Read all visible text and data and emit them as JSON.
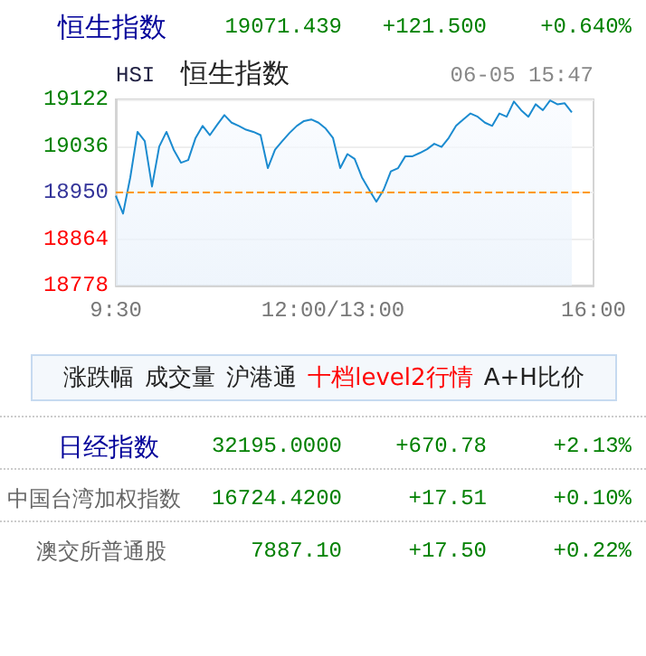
{
  "chart_data": {
    "type": "area",
    "title": "恒生指数",
    "categories": [
      "9:30",
      null,
      null,
      null,
      null,
      null,
      null,
      null,
      null,
      null,
      null,
      null,
      null,
      null,
      null,
      null,
      null,
      null,
      null,
      null,
      null,
      null,
      null,
      null,
      null,
      null,
      null,
      null,
      null,
      null,
      "12:00/13:00",
      null,
      null,
      null,
      null,
      null,
      null,
      null,
      null,
      null,
      null,
      null,
      null,
      null,
      null,
      null,
      null,
      null,
      null,
      null,
      null,
      null,
      null,
      null,
      null,
      null,
      null,
      null,
      null,
      null,
      null,
      null,
      null,
      null,
      null,
      null,
      "16:00"
    ],
    "series": [
      {
        "color": "#1b8bd0",
        "values": [
          18944,
          18911,
          18978,
          19062,
          19045,
          18961,
          19035,
          19062,
          19029,
          19005,
          19010,
          19050,
          19073,
          19056,
          19075,
          19093,
          19079,
          19073,
          19066,
          19062,
          19056,
          18995,
          19029,
          19045,
          19060,
          19073,
          19082,
          19085,
          19079,
          19068,
          19051,
          18995,
          19021,
          19012,
          18978,
          18955,
          18933,
          18955,
          18989,
          18995,
          19017,
          19017,
          19023,
          19030,
          19040,
          19034,
          19051,
          19073,
          19085,
          19096,
          19090,
          19079,
          19073,
          19096,
          19090,
          19118,
          19102,
          19090,
          19113,
          19102,
          19120,
          19113,
          19115,
          19098,
          null,
          null,
          null
        ]
      }
    ],
    "ylim": [
      18778,
      19122
    ],
    "yticks": [
      18778,
      18864,
      18950,
      19036,
      19122
    ],
    "grid": "y",
    "marker": "none",
    "line_style": "solid",
    "ref_lines": [
      {
        "axis": "y",
        "value": 18950,
        "color": "#ff9900",
        "line_style": "dashed"
      }
    ],
    "annotations": [
      "19071.439",
      "+121.500",
      "+0.640%",
      "HSI",
      "恒生指数",
      "06-05 15:47",
      "涨跌幅",
      "成交量",
      "沪港通",
      "十档level2行情",
      "A+H比价",
      "日经指数",
      "32195.0000",
      "+670.78",
      "+2.13%",
      "中国台湾加权指数",
      "16724.4200",
      "+17.51",
      "+0.10%",
      "澳交所普通股",
      "7887.10",
      "+17.50",
      "+0.22%"
    ]
  }
}
